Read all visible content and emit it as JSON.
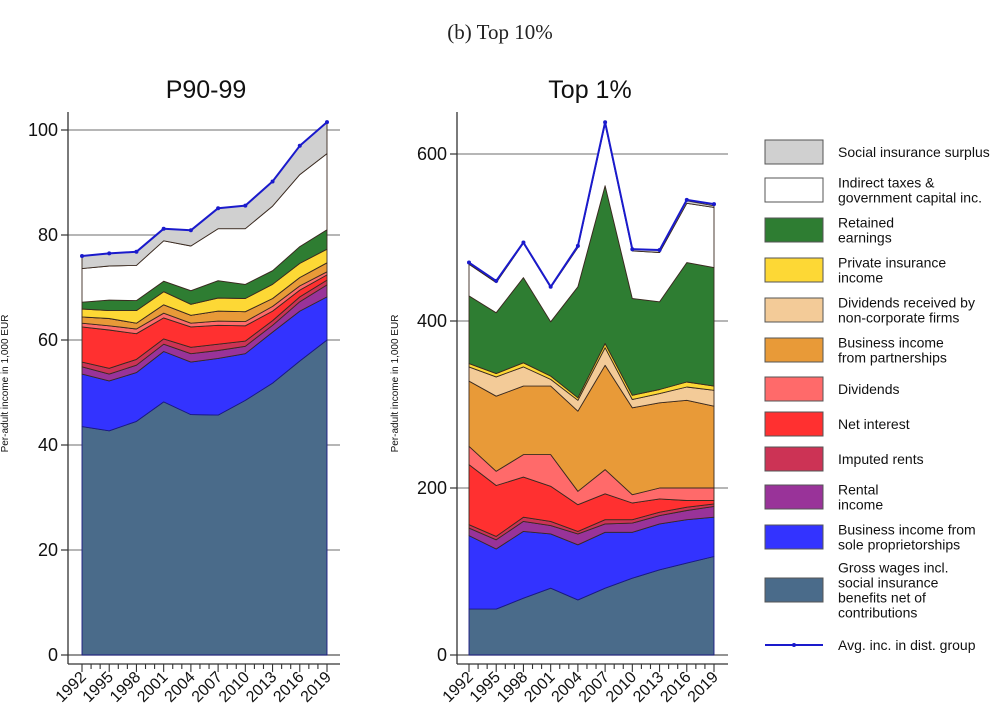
{
  "figure_title": "(b) Top 10%",
  "legend": [
    {
      "key": "social_surplus",
      "label": [
        "Social insurance surplus"
      ],
      "color": "#d0d0d0"
    },
    {
      "key": "indirect_taxes",
      "label": [
        "Indirect taxes &",
        "government capital inc."
      ],
      "color": "#ffffff"
    },
    {
      "key": "retained",
      "label": [
        "Retained",
        "earnings"
      ],
      "color": "#2e7d32"
    },
    {
      "key": "private_ins",
      "label": [
        "Private insurance",
        "income"
      ],
      "color": "#fdd835"
    },
    {
      "key": "div_noncorp",
      "label": [
        "Dividends received by",
        "non-corporate firms"
      ],
      "color": "#f3cb98"
    },
    {
      "key": "partnerships",
      "label": [
        "Business income",
        "from partnerships"
      ],
      "color": "#e89a38"
    },
    {
      "key": "dividends",
      "label": [
        "Dividends"
      ],
      "color": "#ff6a6a"
    },
    {
      "key": "net_interest",
      "label": [
        "Net interest"
      ],
      "color": "#ff3030"
    },
    {
      "key": "imputed_rents",
      "label": [
        "Imputed rents"
      ],
      "color": "#cc3355"
    },
    {
      "key": "rental",
      "label": [
        "Rental",
        "income"
      ],
      "color": "#993399"
    },
    {
      "key": "sole_prop",
      "label": [
        "Business income from",
        "sole proprietorships"
      ],
      "color": "#3333ff"
    },
    {
      "key": "wages",
      "label": [
        "Gross wages incl.",
        "social insurance",
        "benefits net of",
        "contributions"
      ],
      "color": "#4a6b8a"
    },
    {
      "key": "avg_line",
      "label": [
        "Avg. inc. in dist. group"
      ],
      "color": "#1a1acc",
      "type": "line"
    }
  ],
  "chart_data": [
    {
      "type": "area",
      "title": "P90-99",
      "xlabel": "",
      "ylabel": "Per-adult income in 1,000 EUR",
      "x": [
        1992,
        1995,
        1998,
        2001,
        2004,
        2007,
        2010,
        2013,
        2016,
        2019
      ],
      "ylim": [
        0,
        105
      ],
      "yticks": [
        0,
        20,
        40,
        60,
        80,
        100
      ],
      "grid": true,
      "stacked": true,
      "series": [
        {
          "name": "Gross wages incl. social insurance benefits net of contributions",
          "key": "wages",
          "values": [
            43.5,
            42.7,
            44.5,
            48.2,
            45.8,
            45.7,
            48.5,
            51.8,
            56.0,
            60.0
          ]
        },
        {
          "name": "Business income from sole proprietorships",
          "key": "sole_prop",
          "values": [
            10.0,
            9.5,
            9.3,
            9.6,
            10.0,
            10.8,
            8.9,
            9.7,
            9.5,
            8.2
          ]
        },
        {
          "name": "Rental income",
          "key": "rental",
          "values": [
            1.4,
            1.3,
            1.4,
            1.4,
            1.6,
            1.5,
            1.4,
            1.3,
            1.8,
            2.3
          ]
        },
        {
          "name": "Imputed rents",
          "key": "imputed_rents",
          "values": [
            0.9,
            1.1,
            1.1,
            1.0,
            1.2,
            1.2,
            1.0,
            0.9,
            0.9,
            0.9
          ]
        },
        {
          "name": "Net interest",
          "key": "net_interest",
          "values": [
            6.7,
            7.3,
            4.9,
            4.0,
            3.9,
            3.6,
            2.9,
            1.8,
            1.3,
            1.0
          ]
        },
        {
          "name": "Dividends",
          "key": "dividends",
          "values": [
            0.7,
            0.8,
            0.9,
            0.9,
            0.7,
            0.8,
            0.8,
            0.9,
            0.8,
            0.6
          ]
        },
        {
          "name": "Business income from partnerships",
          "key": "partnerships",
          "values": [
            1.2,
            1.4,
            1.1,
            1.6,
            1.5,
            1.9,
            1.9,
            1.5,
            1.6,
            1.7
          ]
        },
        {
          "name": "Dividends received by non-corporate firms",
          "key": "div_noncorp",
          "values": [
            0.0,
            0.0,
            0.0,
            0.0,
            0.0,
            0.0,
            0.0,
            0.0,
            0.0,
            0.0
          ]
        },
        {
          "name": "Private insurance income",
          "key": "private_ins",
          "values": [
            1.5,
            1.5,
            2.4,
            2.5,
            2.1,
            2.5,
            2.5,
            2.7,
            2.7,
            2.6
          ]
        },
        {
          "name": "Retained earnings",
          "key": "retained",
          "values": [
            1.3,
            2.0,
            1.9,
            2.0,
            2.6,
            3.3,
            2.7,
            2.6,
            3.2,
            3.7
          ]
        },
        {
          "name": "Indirect taxes & government capital inc.",
          "key": "indirect_taxes",
          "values": [
            6.4,
            6.5,
            6.7,
            7.7,
            8.5,
            9.9,
            10.6,
            12.3,
            13.7,
            14.5
          ]
        },
        {
          "name": "Social insurance surplus",
          "key": "social_surplus",
          "values": [
            2.4,
            2.4,
            2.6,
            2.3,
            3.0,
            3.9,
            4.4,
            4.7,
            5.5,
            6.0
          ]
        }
      ],
      "line": {
        "name": "Avg. inc. in dist. group",
        "key": "avg_line",
        "values": [
          76.0,
          76.5,
          76.8,
          81.2,
          80.9,
          85.1,
          85.6,
          90.2,
          97.0,
          101.5
        ]
      }
    },
    {
      "type": "area",
      "title": "Top 1%",
      "xlabel": "",
      "ylabel": "Per-adult income in 1,000 EUR",
      "x": [
        1992,
        1995,
        1998,
        2001,
        2004,
        2007,
        2010,
        2013,
        2016,
        2019
      ],
      "ylim": [
        0,
        650
      ],
      "yticks": [
        0,
        200,
        400,
        600
      ],
      "grid": true,
      "stacked": true,
      "series": [
        {
          "name": "Gross wages incl. social insurance benefits net of contributions",
          "key": "wages",
          "values": [
            55,
            55,
            68,
            80,
            66,
            80,
            92,
            102,
            110,
            118
          ]
        },
        {
          "name": "Business income from sole proprietorships",
          "key": "sole_prop",
          "values": [
            88,
            72,
            80,
            65,
            66,
            67,
            55,
            55,
            52,
            47
          ]
        },
        {
          "name": "Rental income",
          "key": "rental",
          "values": [
            9,
            11,
            12,
            10,
            13,
            10,
            11,
            10,
            11,
            13
          ]
        },
        {
          "name": "Imputed rents",
          "key": "imputed_rents",
          "values": [
            4,
            4,
            5,
            5,
            3,
            5,
            4,
            4,
            4,
            3
          ]
        },
        {
          "name": "Net interest",
          "key": "net_interest",
          "values": [
            72,
            61,
            48,
            42,
            32,
            31,
            20,
            16,
            8,
            4
          ]
        },
        {
          "name": "Dividends",
          "key": "dividends",
          "values": [
            22,
            17,
            27,
            38,
            16,
            29,
            10,
            13,
            15,
            15
          ]
        },
        {
          "name": "Business income from partnerships",
          "key": "partnerships",
          "values": [
            78,
            90,
            82,
            82,
            96,
            125,
            104,
            102,
            105,
            98
          ]
        },
        {
          "name": "Dividends received by non-corporate firms",
          "key": "div_noncorp",
          "values": [
            17,
            23,
            23,
            8,
            13,
            21,
            10,
            11,
            16,
            19
          ]
        },
        {
          "name": "Private insurance income",
          "key": "private_ins",
          "values": [
            4,
            4,
            5,
            4,
            3,
            5,
            5,
            5,
            6,
            5
          ]
        },
        {
          "name": "Retained earnings",
          "key": "retained",
          "values": [
            81,
            73,
            102,
            65,
            133,
            189,
            116,
            105,
            143,
            142
          ]
        },
        {
          "name": "Indirect taxes & government capital inc.",
          "key": "indirect_taxes",
          "values": [
            38,
            36,
            41,
            41,
            47,
            74,
            57,
            59,
            71,
            72
          ]
        },
        {
          "name": "Social insurance surplus",
          "key": "social_surplus",
          "values": [
            1,
            1,
            1,
            1,
            2,
            1,
            2,
            3,
            3,
            2
          ]
        }
      ],
      "line": {
        "name": "Avg. inc. in dist. group",
        "key": "avg_line",
        "values": [
          470,
          448,
          494,
          441,
          490,
          638,
          486,
          485,
          545,
          540
        ]
      }
    }
  ]
}
